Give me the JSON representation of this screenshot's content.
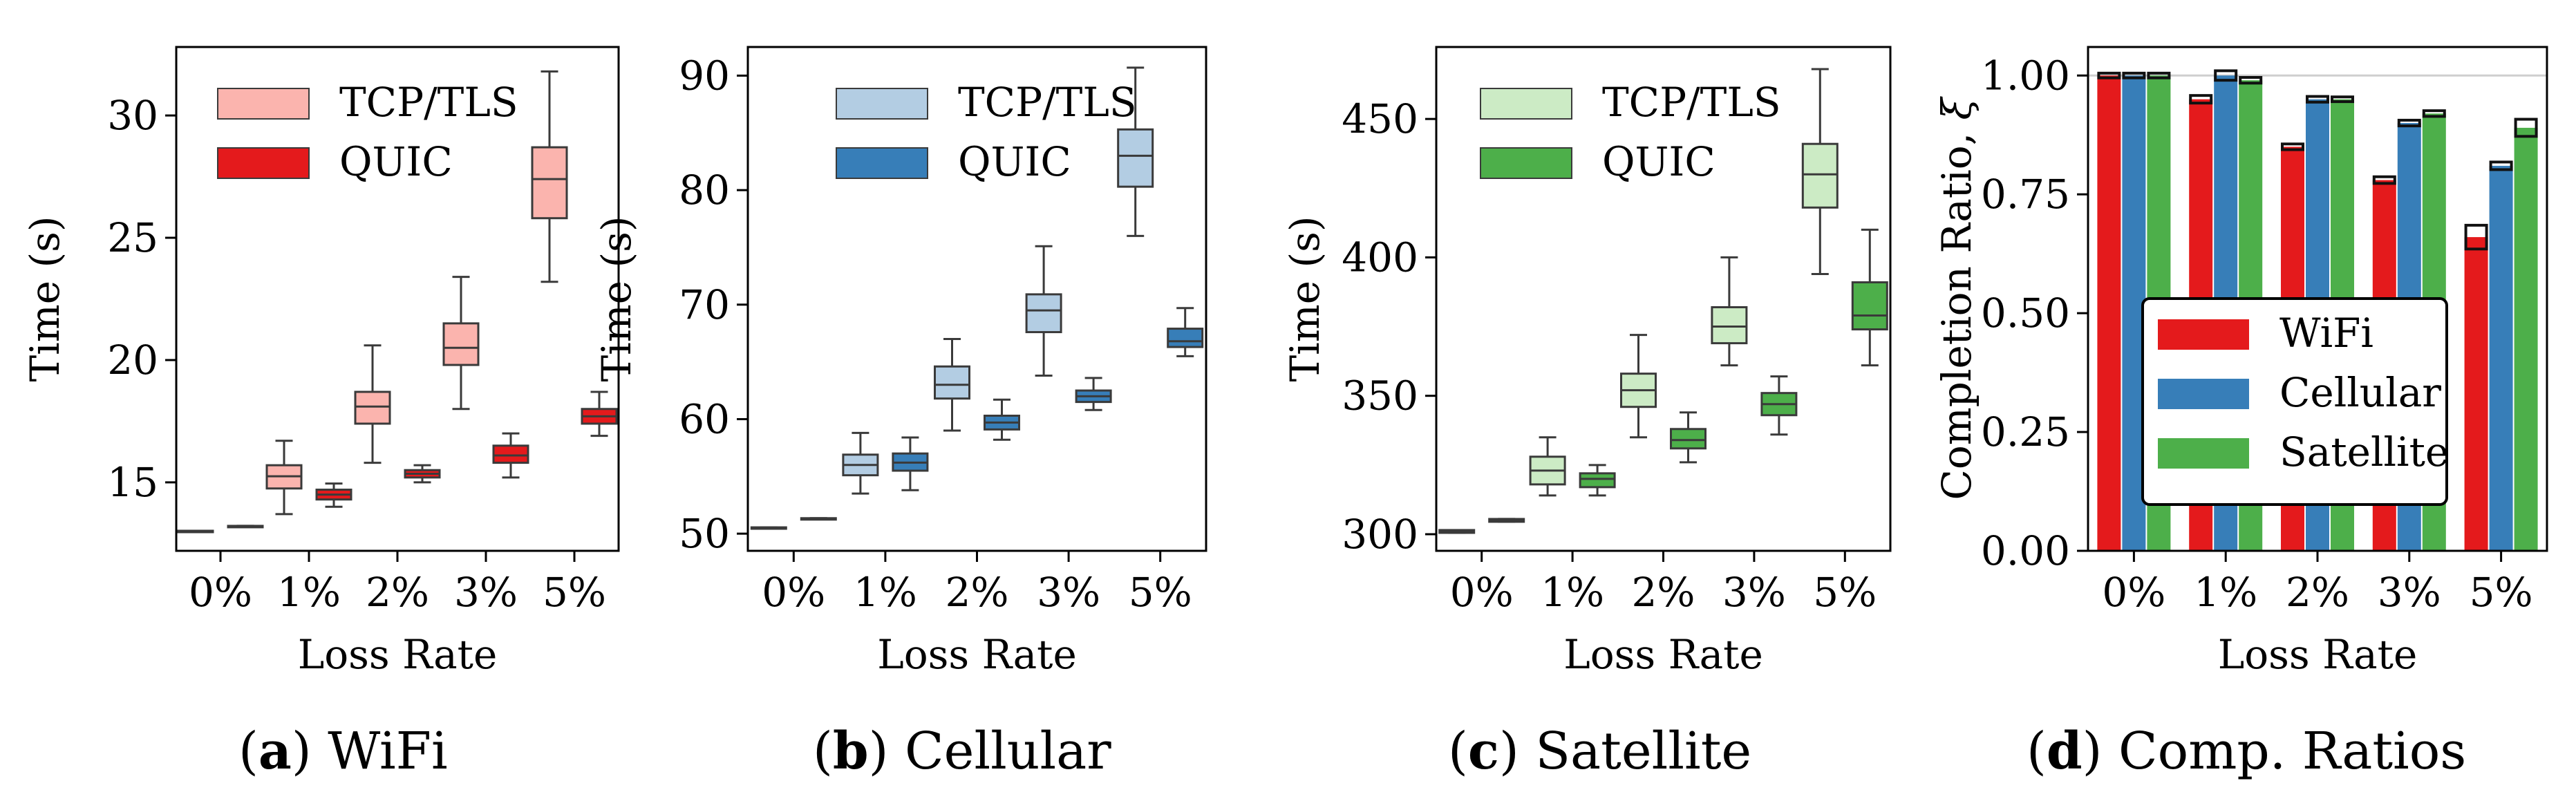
{
  "figure": {
    "x_label": "Loss Rate",
    "categories": [
      "0%",
      "1%",
      "2%",
      "3%",
      "5%"
    ],
    "legend_labels": [
      "TCP/TLS",
      "QUIC"
    ]
  },
  "colors": {
    "wifi_light": "#fbb4ae",
    "wifi_dark": "#e41a1c",
    "cell_light": "#b3cde3",
    "cell_dark": "#377eb8",
    "sat_light": "#ccebc5",
    "sat_dark": "#4daf4a",
    "box_edge": "#3a3a3a"
  },
  "chart_data": [
    {
      "id": "a",
      "type": "box",
      "caption_letter": "a",
      "caption_text": "WiFi",
      "title": "WiFi",
      "ylabel": "Time (s)",
      "xlabel": "Loss Rate",
      "ylim": [
        12.2,
        32.8
      ],
      "yticks": [
        15,
        20,
        25,
        30
      ],
      "yticklabels": [
        "15",
        "20",
        "25",
        "30"
      ],
      "categories": [
        "0%",
        "1%",
        "2%",
        "3%",
        "5%"
      ],
      "legend_position": "top-left",
      "series": [
        {
          "name": "TCP/TLS",
          "color_key": "wifi_light",
          "boxes": [
            {
              "whislo": 12.98,
              "q1": 12.98,
              "med": 13.0,
              "q3": 13.02,
              "whishi": 13.02
            },
            {
              "whislo": 13.7,
              "q1": 14.75,
              "med": 15.25,
              "q3": 15.7,
              "whishi": 16.7
            },
            {
              "whislo": 15.8,
              "q1": 17.4,
              "med": 18.1,
              "q3": 18.7,
              "whishi": 20.6
            },
            {
              "whislo": 18.0,
              "q1": 19.8,
              "med": 20.5,
              "q3": 21.5,
              "whishi": 23.4
            },
            {
              "whislo": 23.2,
              "q1": 25.8,
              "med": 27.4,
              "q3": 28.7,
              "whishi": 31.8
            }
          ]
        },
        {
          "name": "QUIC",
          "color_key": "wifi_dark",
          "boxes": [
            {
              "whislo": 13.18,
              "q1": 13.18,
              "med": 13.2,
              "q3": 13.22,
              "whishi": 13.22
            },
            {
              "whislo": 14.0,
              "q1": 14.3,
              "med": 14.5,
              "q3": 14.7,
              "whishi": 14.95
            },
            {
              "whislo": 15.0,
              "q1": 15.2,
              "med": 15.35,
              "q3": 15.5,
              "whishi": 15.7
            },
            {
              "whislo": 15.2,
              "q1": 15.8,
              "med": 16.1,
              "q3": 16.5,
              "whishi": 17.0
            },
            {
              "whislo": 16.9,
              "q1": 17.4,
              "med": 17.7,
              "q3": 18.0,
              "whishi": 18.7
            }
          ]
        }
      ]
    },
    {
      "id": "b",
      "type": "box",
      "caption_letter": "b",
      "caption_text": "Cellular",
      "title": "Cellular",
      "ylabel": "Time (s)",
      "xlabel": "Loss Rate",
      "ylim": [
        48.5,
        92.5
      ],
      "yticks": [
        50,
        60,
        70,
        80,
        90
      ],
      "yticklabels": [
        "50",
        "60",
        "70",
        "80",
        "90"
      ],
      "categories": [
        "0%",
        "1%",
        "2%",
        "3%",
        "5%"
      ],
      "legend_position": "top-left",
      "series": [
        {
          "name": "TCP/TLS",
          "color_key": "cell_light",
          "boxes": [
            {
              "whislo": 50.45,
              "q1": 50.45,
              "med": 50.5,
              "q3": 50.55,
              "whishi": 50.55
            },
            {
              "whislo": 53.5,
              "q1": 55.1,
              "med": 56.0,
              "q3": 56.9,
              "whishi": 58.8
            },
            {
              "whislo": 59.0,
              "q1": 61.8,
              "med": 63.0,
              "q3": 64.6,
              "whishi": 67.0
            },
            {
              "whislo": 63.8,
              "q1": 67.6,
              "med": 69.5,
              "q3": 70.9,
              "whishi": 75.1
            },
            {
              "whislo": 76.0,
              "q1": 80.3,
              "med": 83.0,
              "q3": 85.3,
              "whishi": 90.7
            }
          ]
        },
        {
          "name": "QUIC",
          "color_key": "cell_dark",
          "boxes": [
            {
              "whislo": 51.25,
              "q1": 51.25,
              "med": 51.3,
              "q3": 51.35,
              "whishi": 51.35
            },
            {
              "whislo": 53.8,
              "q1": 55.5,
              "med": 56.2,
              "q3": 57.0,
              "whishi": 58.4
            },
            {
              "whislo": 58.2,
              "q1": 59.1,
              "med": 59.7,
              "q3": 60.3,
              "whishi": 61.7
            },
            {
              "whislo": 60.8,
              "q1": 61.5,
              "med": 62.0,
              "q3": 62.5,
              "whishi": 63.6
            },
            {
              "whislo": 65.5,
              "q1": 66.3,
              "med": 66.8,
              "q3": 67.9,
              "whishi": 69.7
            }
          ]
        }
      ]
    },
    {
      "id": "c",
      "type": "box",
      "caption_letter": "c",
      "caption_text": "Satellite",
      "title": "Satellite",
      "ylabel": "Time (s)",
      "xlabel": "Loss Rate",
      "ylim": [
        294,
        476
      ],
      "yticks": [
        300,
        350,
        400,
        450
      ],
      "yticklabels": [
        "300",
        "350",
        "400",
        "450"
      ],
      "categories": [
        "0%",
        "1%",
        "2%",
        "3%",
        "5%"
      ],
      "legend_position": "top-left",
      "series": [
        {
          "name": "TCP/TLS",
          "color_key": "sat_light",
          "boxes": [
            {
              "whislo": 300.5,
              "q1": 300.5,
              "med": 301.0,
              "q3": 301.5,
              "whishi": 301.5
            },
            {
              "whislo": 314,
              "q1": 318,
              "med": 323,
              "q3": 328,
              "whishi": 335
            },
            {
              "whislo": 335,
              "q1": 346,
              "med": 352,
              "q3": 358,
              "whishi": 372
            },
            {
              "whislo": 361,
              "q1": 369,
              "med": 375,
              "q3": 382,
              "whishi": 400
            },
            {
              "whislo": 394,
              "q1": 418,
              "med": 430,
              "q3": 441,
              "whishi": 468
            }
          ]
        },
        {
          "name": "QUIC",
          "color_key": "sat_dark",
          "boxes": [
            {
              "whislo": 304.5,
              "q1": 304.5,
              "med": 305.0,
              "q3": 305.5,
              "whishi": 305.5
            },
            {
              "whislo": 314,
              "q1": 317,
              "med": 320,
              "q3": 322,
              "whishi": 325
            },
            {
              "whislo": 326,
              "q1": 331,
              "med": 334,
              "q3": 338,
              "whishi": 344
            },
            {
              "whislo": 336,
              "q1": 343,
              "med": 347,
              "q3": 351,
              "whishi": 357
            },
            {
              "whislo": 361,
              "q1": 374,
              "med": 379,
              "q3": 391,
              "whishi": 410
            }
          ]
        }
      ]
    },
    {
      "id": "d",
      "type": "bar",
      "caption_letter": "d",
      "caption_text": "Comp. Ratios",
      "title": "Comp. Ratios",
      "ylabel": "Completion Ratio, ",
      "ylabel_symbol": "ξ",
      "xlabel": "Loss Rate",
      "ylim": [
        0,
        1.06
      ],
      "yticks": [
        0.0,
        0.25,
        0.5,
        0.75,
        1.0
      ],
      "yticklabels": [
        "0.00",
        "0.25",
        "0.50",
        "0.75",
        "1.00"
      ],
      "categories": [
        "0%",
        "1%",
        "2%",
        "3%",
        "5%"
      ],
      "legend_position": "lower-right",
      "reference_line": 1.0,
      "series": [
        {
          "name": "WiFi",
          "color_key": "wifi_dark",
          "values": [
            1.0,
            0.95,
            0.85,
            0.78,
            0.66
          ],
          "errors": [
            0.005,
            0.008,
            0.006,
            0.007,
            0.025
          ]
        },
        {
          "name": "Cellular",
          "color_key": "cell_dark",
          "values": [
            1.0,
            1.0,
            0.95,
            0.9,
            0.81
          ],
          "errors": [
            0.005,
            0.01,
            0.006,
            0.006,
            0.008
          ]
        },
        {
          "name": "Satellite",
          "color_key": "sat_dark",
          "values": [
            1.0,
            0.99,
            0.95,
            0.92,
            0.89
          ],
          "errors": [
            0.005,
            0.006,
            0.005,
            0.006,
            0.018
          ]
        }
      ]
    }
  ]
}
